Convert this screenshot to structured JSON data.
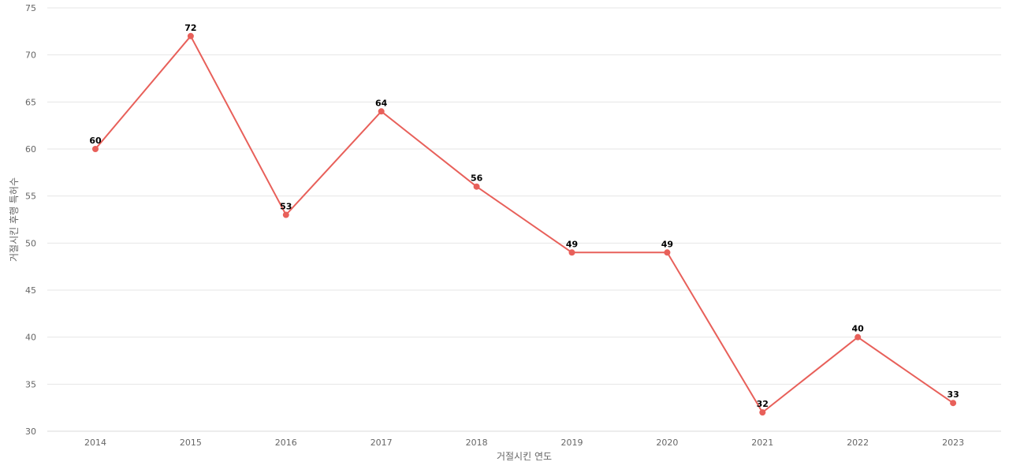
{
  "chart_data": {
    "type": "line",
    "xlabel": "거절시킨 연도",
    "ylabel": "거절시킨 후행 특허수",
    "ylim": [
      30,
      75
    ],
    "yticks": [
      30,
      35,
      40,
      45,
      50,
      55,
      60,
      65,
      70,
      75
    ],
    "categories": [
      "2014",
      "2015",
      "2016",
      "2017",
      "2018",
      "2019",
      "2020",
      "2021",
      "2022",
      "2023"
    ],
    "series": [
      {
        "values": [
          60,
          72,
          53,
          64,
          56,
          49,
          49,
          32,
          40,
          33
        ]
      }
    ],
    "grid": true,
    "legend": "none",
    "colors": {
      "line": "#e8605a",
      "grid": "#e6e6e6",
      "text": "#666666"
    }
  }
}
